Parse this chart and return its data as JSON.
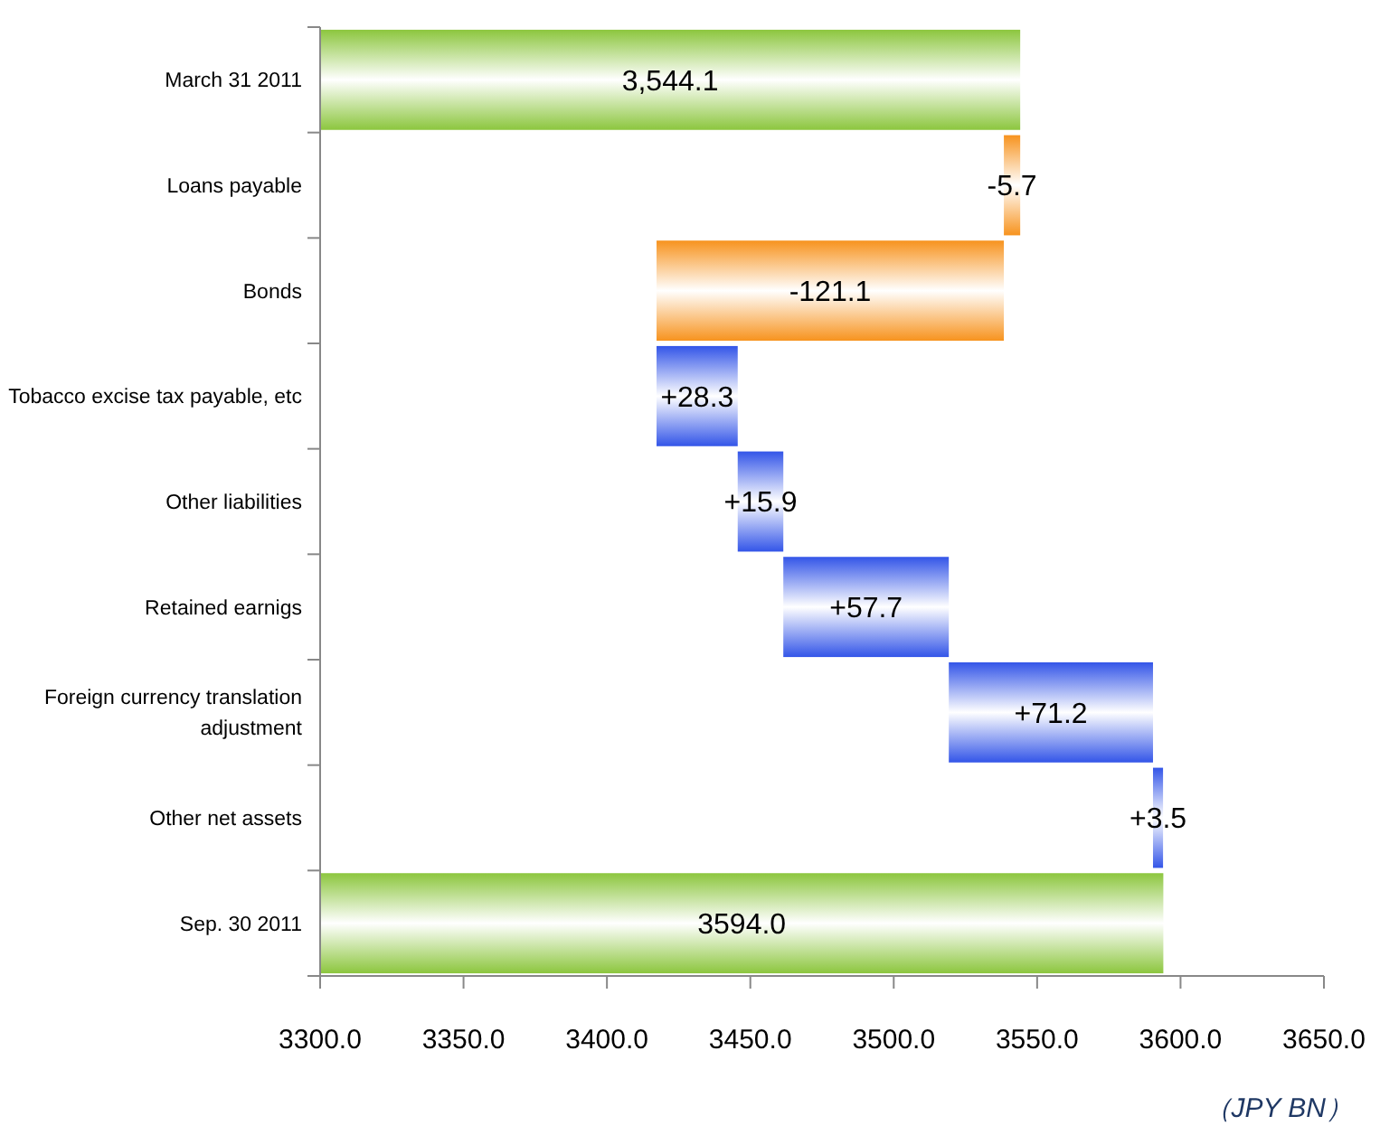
{
  "chart_data": {
    "type": "bar",
    "orientation": "horizontal",
    "categories": [
      "March 31 2011",
      "Loans payable",
      "Bonds",
      "Tobacco excise tax payable, etc",
      "Other liabilities",
      "Retained earnigs",
      "Foreign currency translation adjustment",
      "Other net assets",
      "Sep. 30 2011"
    ],
    "values": [
      3544.1,
      -5.7,
      -121.1,
      28.3,
      15.9,
      57.7,
      71.2,
      3.5,
      3594.0
    ],
    "base": [
      null,
      3544.1,
      3538.4,
      3417.3,
      3445.6,
      3461.5,
      3519.2,
      3590.4,
      null
    ],
    "colors": [
      "#8cc63e",
      "#f7931e",
      "#f7931e",
      "#3355e8",
      "#3355e8",
      "#3355e8",
      "#3355e8",
      "#3355e8",
      "#8cc63e"
    ],
    "value_labels": [
      "3,544.1",
      "-5.7",
      "-121.1",
      "+28.3",
      "+15.9",
      "+57.7",
      "+71.2",
      "+3.5",
      "3594.0"
    ],
    "xlim": [
      3300,
      3650
    ],
    "xticks": [
      {
        "value": 3300,
        "label": "3300.0"
      },
      {
        "value": 3350,
        "label": "3350.0"
      },
      {
        "value": 3400,
        "label": "3400.0"
      },
      {
        "value": 3450,
        "label": "3450.0"
      },
      {
        "value": 3500,
        "label": "3500.0"
      },
      {
        "value": 3550,
        "label": "3550.0"
      },
      {
        "value": 3600,
        "label": "3600.0"
      },
      {
        "value": 3650,
        "label": "3650.0"
      }
    ],
    "grid": false,
    "annotations": [
      "（JPY BN）"
    ]
  }
}
